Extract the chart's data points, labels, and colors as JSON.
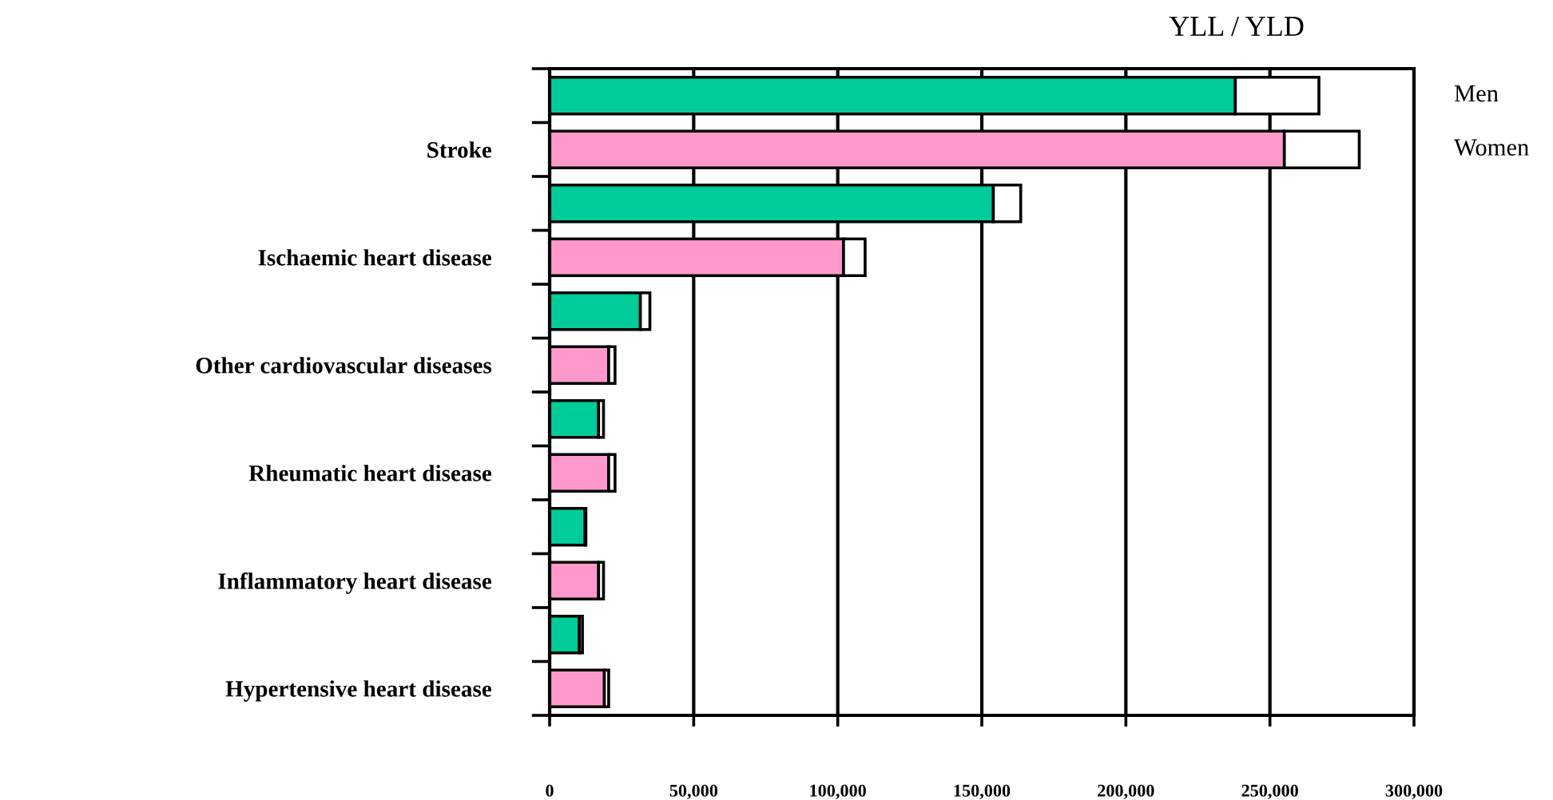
{
  "chart_data": {
    "type": "bar",
    "orientation": "horizontal",
    "stacked": true,
    "title": "YLL / YLD",
    "categories": [
      null,
      "Stroke",
      null,
      "Ischaemic heart disease",
      null,
      "Other cardiovascular diseases",
      null,
      "Rheumatic heart disease",
      null,
      "Inflammatory heart disease",
      null,
      "Hypertensive heart disease"
    ],
    "series": [
      {
        "colors": [
          "#00cc99",
          "#ff99cc",
          "#00cc99",
          "#ff99cc",
          "#00cc99",
          "#ff99cc",
          "#00cc99",
          "#ff99cc",
          "#00cc99",
          "#ff99cc",
          "#00cc99",
          "#ff99cc"
        ],
        "values": [
          238000,
          255000,
          154000,
          102000,
          31500,
          20500,
          17000,
          20500,
          12300,
          17000,
          10300,
          19000
        ]
      },
      {
        "color": "#ffffff",
        "values": [
          29000,
          26000,
          9500,
          7500,
          3300,
          2200,
          1700,
          2200,
          300,
          1700,
          1100,
          1500
        ]
      }
    ],
    "xlim": [
      0,
      300000
    ],
    "xticks": [
      {
        "value": 0,
        "label": "0"
      },
      {
        "value": 50000,
        "label": "50,000"
      },
      {
        "value": 100000,
        "label": "100,000"
      },
      {
        "value": 150000,
        "label": "150,000"
      },
      {
        "value": 200000,
        "label": "200,000"
      },
      {
        "value": 250000,
        "label": "250,000"
      },
      {
        "value": 300000,
        "label": "300,000"
      }
    ],
    "grid": "x",
    "annotations": [
      "Men",
      "Women"
    ]
  }
}
